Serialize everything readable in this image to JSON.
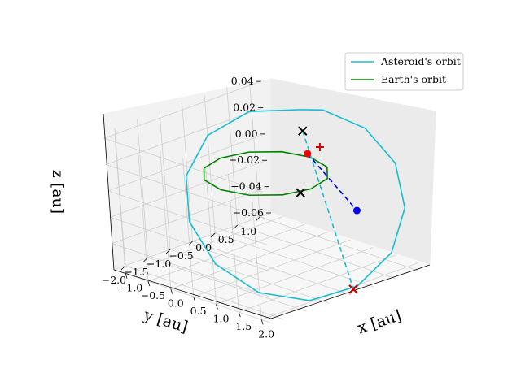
{
  "chart_data": {
    "type": "line3d",
    "xlabel": "x [au]",
    "ylabel": "y [au]",
    "zlabel": "z [au]",
    "x_ticks": [
      "−1.0",
      "−0.5",
      "0.0",
      "0.5",
      "1.0",
      "1.5",
      "2.0"
    ],
    "y_ticks": [
      "1.0",
      "0.5",
      "0.0",
      "−0.5",
      "−1.0",
      "−1.5",
      "−2.0"
    ],
    "z_ticks": [
      "0.04",
      "0.02",
      "0.00",
      "−0.02",
      "−0.04",
      "−0.06"
    ],
    "xlim": [
      -1.25,
      2.25
    ],
    "ylim": [
      -2.25,
      1.25
    ],
    "zlim": [
      -0.06,
      0.045
    ],
    "grid": true,
    "legend_position": "top-right",
    "series": [
      {
        "name": "Asteroid's orbit",
        "color": "#17becf",
        "style": "solid",
        "points": [
          [
            -0.21,
            1.06,
            0.033
          ],
          [
            -0.69,
            0.41,
            0.034
          ],
          [
            -0.88,
            -0.35,
            0.023
          ],
          [
            -0.7,
            -1.06,
            0.003
          ],
          [
            -0.16,
            -1.58,
            -0.019
          ],
          [
            0.62,
            -1.83,
            -0.039
          ],
          [
            1.45,
            -1.74,
            -0.052
          ],
          [
            2.16,
            -1.33,
            -0.055
          ],
          [
            2.59,
            -0.68,
            -0.047
          ],
          [
            2.65,
            0.06,
            -0.03
          ],
          [
            2.33,
            0.73,
            -0.008
          ],
          [
            1.7,
            1.2,
            0.013
          ],
          [
            0.9,
            1.37,
            0.028
          ],
          [
            0.1,
            1.25,
            0.034
          ]
        ]
      },
      {
        "name": "Earth's orbit",
        "color": "#008000",
        "style": "solid",
        "points": [
          [
            1,
            0,
            0
          ],
          [
            0.866,
            0.5,
            0
          ],
          [
            0.5,
            0.866,
            0
          ],
          [
            0,
            1,
            0
          ],
          [
            -0.5,
            0.866,
            0
          ],
          [
            -0.866,
            0.5,
            0
          ],
          [
            -1,
            0,
            0
          ],
          [
            -0.866,
            -0.5,
            0
          ],
          [
            -0.5,
            -0.866,
            0
          ],
          [
            0,
            -1,
            0
          ],
          [
            0.5,
            -0.866,
            0
          ],
          [
            0.866,
            -0.5,
            0
          ]
        ]
      },
      {
        "name": "",
        "color": "#0000ff",
        "style": "dashed",
        "points": [
          [
            -0.06,
            1.0,
            0.002
          ],
          [
            1.95,
            0.05,
            -0.006
          ]
        ]
      },
      {
        "name": "",
        "color": "#17becf",
        "style": "dashed",
        "points": [
          [
            -0.32,
            1.18,
            0.014
          ],
          [
            2.6,
            -0.78,
            -0.048
          ]
        ]
      }
    ],
    "markers": [
      {
        "name": "earth-position",
        "color": "#ff0000",
        "shape": "circle",
        "point": [
          -0.06,
          1.0,
          0.002
        ]
      },
      {
        "name": "asteroid-position",
        "color": "#0000ff",
        "shape": "circle",
        "point": [
          1.95,
          0.05,
          -0.006
        ]
      },
      {
        "name": "cross-near-end",
        "color": "#000000",
        "shape": "x",
        "point": [
          -0.32,
          1.18,
          0.014
        ]
      },
      {
        "name": "cross-center",
        "color": "#000000",
        "shape": "x",
        "point": [
          0.62,
          0.13,
          -0.009
        ]
      },
      {
        "name": "cross-far-end",
        "color": "#000000",
        "shape": "x",
        "point": [
          2.6,
          -0.78,
          -0.048
        ]
      },
      {
        "name": "sun-marker",
        "color": "#cc0000",
        "shape": "x",
        "point": [
          2.6,
          -0.78,
          -0.048
        ]
      },
      {
        "name": "plus-marker",
        "color": "#cc0000",
        "shape": "plus",
        "point": [
          0.0,
          1.22,
          0.005
        ]
      }
    ]
  }
}
